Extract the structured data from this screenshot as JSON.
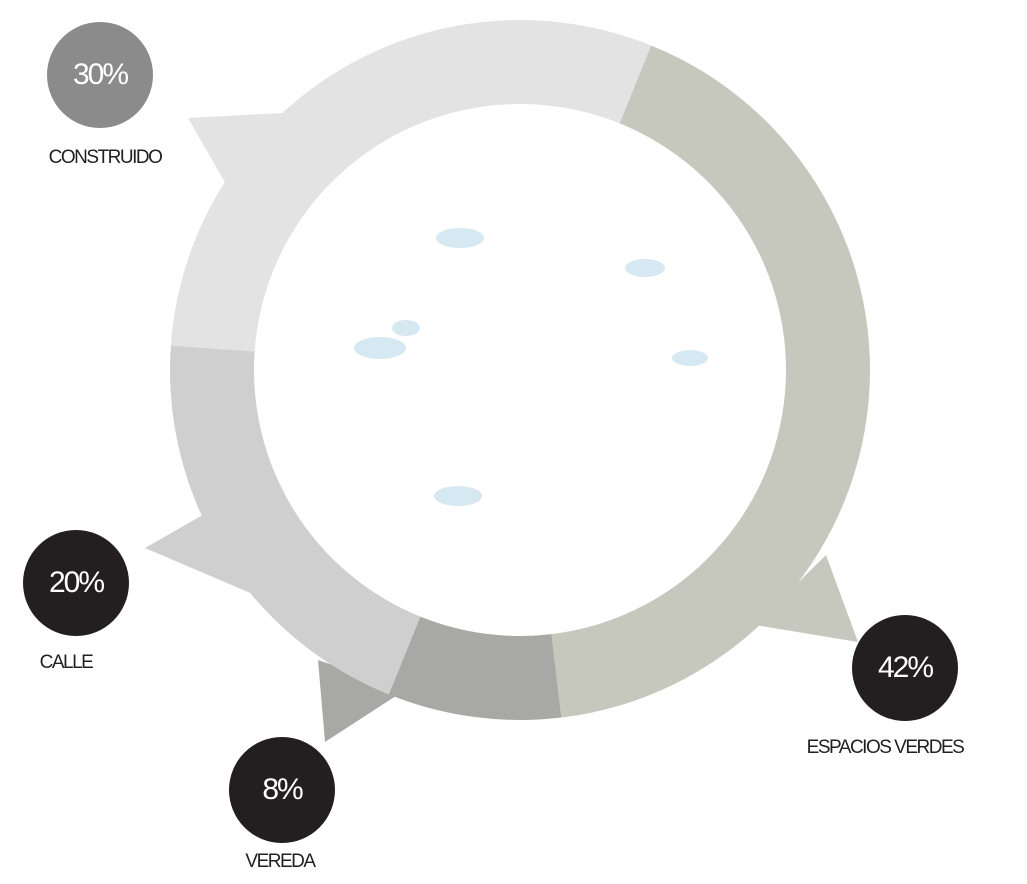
{
  "chart_data": {
    "type": "donut",
    "categories": [
      "CONSTRUIDO",
      "CALLE",
      "VEREDA",
      "ESPACIOS VERDES"
    ],
    "values": [
      30,
      20,
      8,
      42
    ],
    "value_labels": [
      "30%",
      "20%",
      "8%",
      "42%"
    ],
    "colors": [
      "#e3e3e3",
      "#cfcfcf",
      "#a8a8a6",
      "#c6c8bd"
    ]
  }
}
